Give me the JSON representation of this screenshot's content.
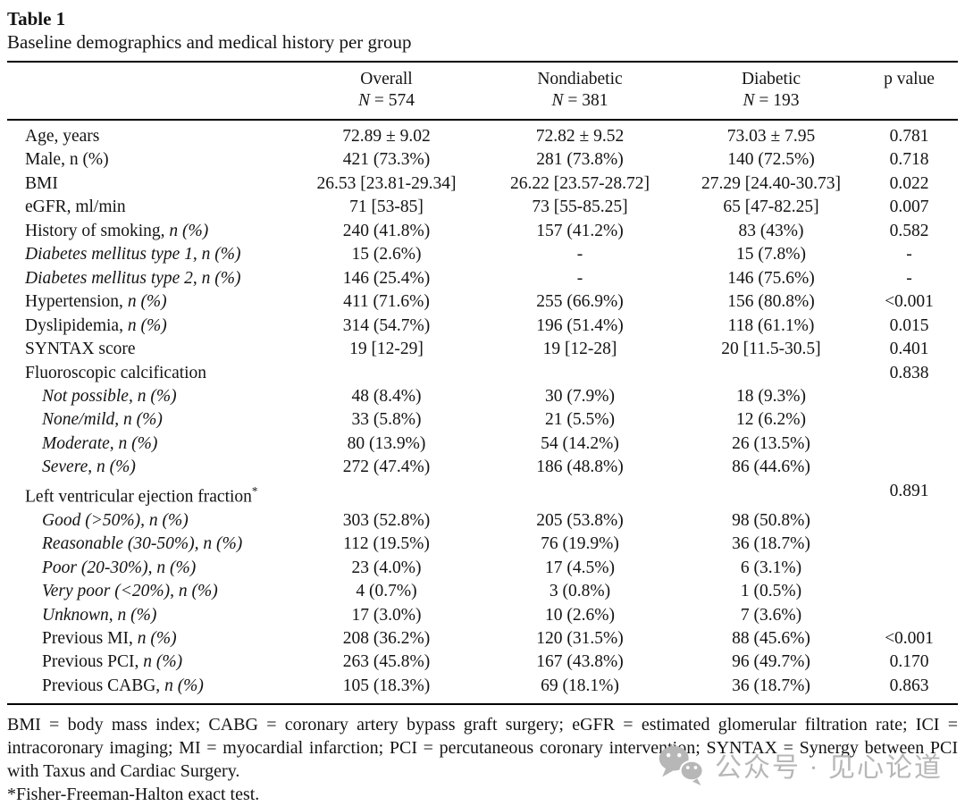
{
  "title": "Table 1",
  "subtitle": "Baseline demographics and medical history per group",
  "header": {
    "groups": [
      {
        "name": "Overall",
        "n_symbol": "N",
        "n_value": "= 574"
      },
      {
        "name": "Nondiabetic",
        "n_symbol": "N",
        "n_value": "= 381"
      },
      {
        "name": "Diabetic",
        "n_symbol": "N",
        "n_value": "= 193"
      }
    ],
    "p_label": "p value"
  },
  "table": {
    "rows": [
      {
        "label": "Age, years",
        "values": [
          "72.89 ± 9.02",
          "72.82 ± 9.52",
          "73.03 ± 7.95",
          "0.781"
        ]
      },
      {
        "label": "Male, n (%)",
        "values": [
          "421 (73.3%)",
          "281 (73.8%)",
          "140 (72.5%)",
          "0.718"
        ]
      },
      {
        "label": "BMI",
        "values": [
          "26.53 [23.81-29.34]",
          "26.22 [23.57-28.72]",
          "27.29 [24.40-30.73]",
          "0.022"
        ]
      },
      {
        "label": "eGFR, ml/min",
        "values": [
          "71 [53-85]",
          "73 [55-85.25]",
          "65 [47-82.25]",
          "0.007"
        ]
      },
      {
        "label": "History of smoking, ",
        "nlabel": "n (%)",
        "values": [
          "240 (41.8%)",
          "157 (41.2%)",
          "83 (43%)",
          "0.582"
        ]
      },
      {
        "label": "Diabetes mellitus type 1, n (%)",
        "italic": true,
        "values": [
          "15 (2.6%)",
          "-",
          "15 (7.8%)",
          "-"
        ]
      },
      {
        "label": "Diabetes mellitus type 2, n (%)",
        "italic": true,
        "values": [
          "146 (25.4%)",
          "-",
          "146 (75.6%)",
          "-"
        ]
      },
      {
        "label": "Hypertension, ",
        "nlabel": "n (%)",
        "values": [
          "411 (71.6%)",
          "255 (66.9%)",
          "156 (80.8%)",
          "<0.001"
        ]
      },
      {
        "label": "Dyslipidemia, ",
        "nlabel": "n (%)",
        "values": [
          "314 (54.7%)",
          "196 (51.4%)",
          "118 (61.1%)",
          "0.015"
        ]
      },
      {
        "label": "SYNTAX score",
        "values": [
          "19 [12-29]",
          "19 [12-28]",
          "20 [11.5-30.5]",
          "0.401"
        ]
      },
      {
        "label": "Fluoroscopic calcification",
        "values": [
          "",
          "",
          "",
          "0.838"
        ]
      },
      {
        "label": "Not possible, n (%)",
        "italic": true,
        "indent": 1,
        "values": [
          "48 (8.4%)",
          "30 (7.9%)",
          "18 (9.3%)",
          ""
        ]
      },
      {
        "label": "None/mild, n (%)",
        "italic": true,
        "indent": 1,
        "values": [
          "33 (5.8%)",
          "21 (5.5%)",
          "12 (6.2%)",
          ""
        ]
      },
      {
        "label": "Moderate, n (%)",
        "italic": true,
        "indent": 1,
        "values": [
          "80 (13.9%)",
          "54 (14.2%)",
          "26 (13.5%)",
          ""
        ]
      },
      {
        "label": "Severe, n (%)",
        "italic": true,
        "indent": 1,
        "values": [
          "272 (47.4%)",
          "186 (48.8%)",
          "86 (44.6%)",
          ""
        ]
      },
      {
        "label": "Left ventricular ejection fraction",
        "sup": "*",
        "values": [
          "",
          "",
          "",
          "0.891"
        ]
      },
      {
        "label": "Good (>50%), n (%)",
        "italic": true,
        "indent": 1,
        "values": [
          "303 (52.8%)",
          "205 (53.8%)",
          "98 (50.8%)",
          ""
        ]
      },
      {
        "label": "Reasonable (30-50%), n (%)",
        "italic": true,
        "indent": 1,
        "values": [
          "112 (19.5%)",
          "76 (19.9%)",
          "36 (18.7%)",
          ""
        ]
      },
      {
        "label": "Poor (20-30%), n (%)",
        "italic": true,
        "indent": 1,
        "values": [
          "23 (4.0%)",
          "17 (4.5%)",
          "6 (3.1%)",
          ""
        ]
      },
      {
        "label": "Very poor (<20%), n (%)",
        "italic": true,
        "indent": 1,
        "values": [
          "4 (0.7%)",
          "3 (0.8%)",
          "1 (0.5%)",
          ""
        ]
      },
      {
        "label": "Unknown, n (%)",
        "italic": true,
        "indent": 1,
        "values": [
          "17 (3.0%)",
          "10 (2.6%)",
          "7 (3.6%)",
          ""
        ]
      },
      {
        "label": "Previous MI, ",
        "nlabel": "n (%)",
        "indent": 1,
        "values": [
          "208 (36.2%)",
          "120 (31.5%)",
          "88 (45.6%)",
          "<0.001"
        ]
      },
      {
        "label": "Previous PCI, ",
        "nlabel": "n (%)",
        "indent": 1,
        "values": [
          "263 (45.8%)",
          "167 (43.8%)",
          "96 (49.7%)",
          "0.170"
        ]
      },
      {
        "label": "Previous CABG, ",
        "nlabel": "n (%)",
        "indent": 1,
        "values": [
          "105 (18.3%)",
          "69 (18.1%)",
          "36 (18.7%)",
          "0.863"
        ]
      }
    ]
  },
  "footer": {
    "abbreviations": "BMI = body mass index; CABG = coronary artery bypass graft surgery; eGFR = estimated glomerular filtration rate; ICI = intracoronary imaging; MI = myocardial infarction; PCI = percutaneous coronary intervention; SYNTAX = Synergy between PCI with Taxus and Cardiac Surgery.",
    "footnote": "*Fisher-Freeman-Halton exact test."
  },
  "watermark": {
    "icon": "wechat-icon",
    "text": "公众号 · 见心论道",
    "color": "#b7b7b7"
  }
}
